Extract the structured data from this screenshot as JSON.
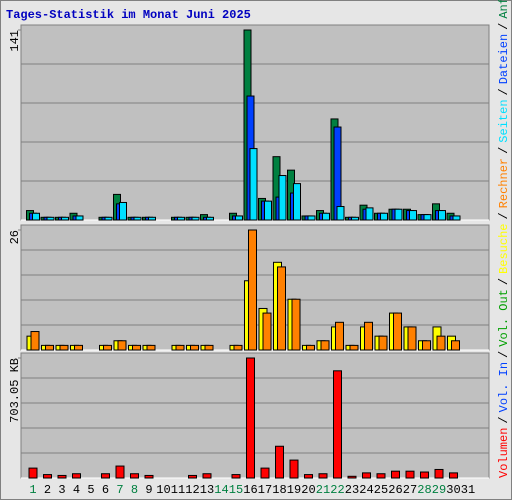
{
  "title": "Tages-Statistik im Monat Juni 2025",
  "legend_separator": "/",
  "chart_data": [
    {
      "type": "bar",
      "categories": [
        "1",
        "2",
        "3",
        "4",
        "5",
        "6",
        "7",
        "8",
        "9",
        "10",
        "11",
        "12",
        "13",
        "14",
        "15",
        "16",
        "17",
        "18",
        "19",
        "20",
        "21",
        "22",
        "23",
        "24",
        "25",
        "26",
        "27",
        "28",
        "29",
        "30",
        "31"
      ],
      "weekends": [
        "1",
        "7",
        "8",
        "14",
        "15",
        "21",
        "22",
        "28",
        "29"
      ],
      "weekend_color": "#008040",
      "ylim": [
        0,
        141
      ],
      "yticks": [
        141
      ],
      "grid": true,
      "series": [
        {
          "name": "Anfragen",
          "color": "#008040",
          "values": [
            7,
            2,
            2,
            5,
            0,
            2,
            19,
            2,
            2,
            0,
            2,
            2,
            4,
            0,
            5,
            141,
            16,
            47,
            37,
            3,
            7,
            75,
            2,
            11,
            5,
            8,
            8,
            4,
            12,
            5,
            0
          ]
        },
        {
          "name": "Dateien",
          "color": "#0040ff",
          "values": [
            5,
            2,
            2,
            3,
            0,
            2,
            12,
            2,
            2,
            0,
            2,
            2,
            2,
            0,
            3,
            92,
            14,
            17,
            20,
            3,
            5,
            69,
            2,
            8,
            5,
            8,
            7,
            4,
            7,
            3,
            0
          ]
        },
        {
          "name": "Seiten",
          "color": "#00e0ff",
          "values": [
            5,
            2,
            2,
            3,
            0,
            2,
            13,
            2,
            2,
            0,
            2,
            2,
            2,
            0,
            3,
            53,
            14,
            33,
            27,
            3,
            5,
            10,
            2,
            9,
            5,
            8,
            7,
            4,
            7,
            3,
            0
          ]
        }
      ]
    },
    {
      "type": "bar",
      "ylim": [
        0,
        26
      ],
      "yticks": [
        26
      ],
      "grid": true,
      "series": [
        {
          "name": "Besuche",
          "color": "#ffff00",
          "values": [
            3,
            1,
            1,
            1,
            0,
            1,
            2,
            1,
            1,
            0,
            1,
            1,
            1,
            0,
            1,
            15,
            9,
            19,
            11,
            1,
            2,
            5,
            1,
            5,
            3,
            8,
            5,
            2,
            5,
            3,
            0
          ]
        },
        {
          "name": "Rechner",
          "color": "#ff8000",
          "values": [
            4,
            1,
            1,
            1,
            0,
            1,
            2,
            1,
            1,
            0,
            1,
            1,
            1,
            0,
            1,
            26,
            8,
            18,
            11,
            1,
            2,
            6,
            1,
            6,
            3,
            8,
            5,
            2,
            3,
            2,
            0
          ]
        }
      ]
    },
    {
      "type": "bar",
      "ylim": [
        0,
        703.05
      ],
      "yticks": [
        {
          "value": 703.05,
          "label": "703.05 KB"
        }
      ],
      "grid": true,
      "series": [
        {
          "name": "Volumen",
          "color": "#ff0000",
          "values": [
            58,
            20,
            15,
            25,
            0,
            25,
            70,
            25,
            15,
            0,
            0,
            15,
            25,
            0,
            20,
            703.05,
            58,
            186,
            105,
            20,
            25,
            628,
            10,
            30,
            25,
            40,
            40,
            35,
            50,
            30,
            0
          ]
        }
      ],
      "legend_only": [
        {
          "name": "Vol. In",
          "color": "#0040ff"
        },
        {
          "name": "Vol. Out",
          "color": "#00a000"
        }
      ]
    }
  ]
}
